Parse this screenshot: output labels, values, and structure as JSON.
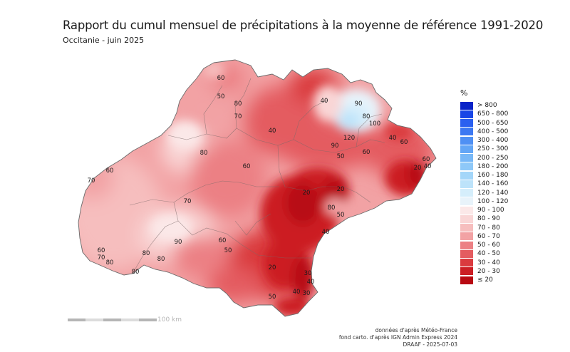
{
  "header": {
    "title": "Rapport du cumul mensuel de précipitations à la moyenne de référence 1991-2020",
    "subtitle": "Occitanie - juin 2025"
  },
  "legend": {
    "unit": "%",
    "classes": [
      {
        "label": "> 800",
        "color": "#0a24c8"
      },
      {
        "label": "650 - 800",
        "color": "#1846e6"
      },
      {
        "label": "500 - 650",
        "color": "#2a60f0"
      },
      {
        "label": "400 - 500",
        "color": "#3c78f2"
      },
      {
        "label": "300 - 400",
        "color": "#4f90f4"
      },
      {
        "label": "250 - 300",
        "color": "#63a6f6"
      },
      {
        "label": "200 - 250",
        "color": "#78b8f7"
      },
      {
        "label": "180 - 200",
        "color": "#8ec8f8"
      },
      {
        "label": "160 - 180",
        "color": "#a4d6f9"
      },
      {
        "label": "140 - 160",
        "color": "#bde3fa"
      },
      {
        "label": "120 - 140",
        "color": "#d5eefb"
      },
      {
        "label": "100 - 120",
        "color": "#e8f3fa"
      },
      {
        "label": "90 - 100",
        "color": "#fbe8e8"
      },
      {
        "label": "80 - 90",
        "color": "#f9d6d6"
      },
      {
        "label": "70 - 80",
        "color": "#f6bebe"
      },
      {
        "label": "60 - 70",
        "color": "#f2a2a4"
      },
      {
        "label": "50 - 60",
        "color": "#ec8084"
      },
      {
        "label": "40 - 50",
        "color": "#e45c60"
      },
      {
        "label": "30 - 40",
        "color": "#da3a3e"
      },
      {
        "label": "20 - 30",
        "color": "#cc1e24"
      },
      {
        "label": "≤ 20",
        "color": "#b80a12"
      }
    ]
  },
  "map_labels": [
    {
      "text": "60",
      "kind": "isoline-value"
    },
    {
      "text": "50",
      "kind": "isoline-value"
    },
    {
      "text": "80",
      "kind": "isoline-value"
    },
    {
      "text": "70",
      "kind": "isoline-value"
    },
    {
      "text": "40",
      "kind": "isoline-value"
    },
    {
      "text": "40",
      "kind": "isoline-value"
    },
    {
      "text": "90",
      "kind": "isoline-value"
    },
    {
      "text": "80",
      "kind": "isoline-value"
    },
    {
      "text": "100",
      "kind": "isoline-value"
    },
    {
      "text": "120",
      "kind": "isoline-value"
    },
    {
      "text": "90",
      "kind": "isoline-value"
    },
    {
      "text": "40",
      "kind": "isoline-value"
    },
    {
      "text": "60",
      "kind": "isoline-value"
    },
    {
      "text": "60",
      "kind": "isoline-value"
    },
    {
      "text": "50",
      "kind": "isoline-value"
    },
    {
      "text": "60",
      "kind": "isoline-value"
    },
    {
      "text": "40",
      "kind": "isoline-value"
    },
    {
      "text": "80",
      "kind": "isoline-value"
    },
    {
      "text": "60",
      "kind": "isoline-value"
    },
    {
      "text": "20",
      "kind": "isoline-value"
    },
    {
      "text": "60",
      "kind": "isoline-value"
    },
    {
      "text": "70",
      "kind": "isoline-value"
    },
    {
      "text": "70",
      "kind": "isoline-value"
    },
    {
      "text": "20",
      "kind": "isoline-value"
    },
    {
      "text": "20",
      "kind": "isoline-value"
    },
    {
      "text": "80",
      "kind": "isoline-value"
    },
    {
      "text": "50",
      "kind": "isoline-value"
    },
    {
      "text": "40",
      "kind": "isoline-value"
    },
    {
      "text": "90",
      "kind": "isoline-value"
    },
    {
      "text": "60",
      "kind": "isoline-value"
    },
    {
      "text": "50",
      "kind": "isoline-value"
    },
    {
      "text": "60",
      "kind": "isoline-value"
    },
    {
      "text": "70",
      "kind": "isoline-value"
    },
    {
      "text": "80",
      "kind": "isoline-value"
    },
    {
      "text": "80",
      "kind": "isoline-value"
    },
    {
      "text": "80",
      "kind": "isoline-value"
    },
    {
      "text": "80",
      "kind": "isoline-value"
    },
    {
      "text": "20",
      "kind": "isoline-value"
    },
    {
      "text": "30",
      "kind": "isoline-value"
    },
    {
      "text": "40",
      "kind": "isoline-value"
    },
    {
      "text": "50",
      "kind": "isoline-value"
    },
    {
      "text": "40",
      "kind": "isoline-value"
    },
    {
      "text": "30",
      "kind": "isoline-value"
    }
  ],
  "scale": {
    "label": "100 km"
  },
  "credits": [
    "données d'après Météo-France",
    "fond carto. d'après IGN Admin Express 2024",
    "DRAAF - 2025-07-03"
  ]
}
